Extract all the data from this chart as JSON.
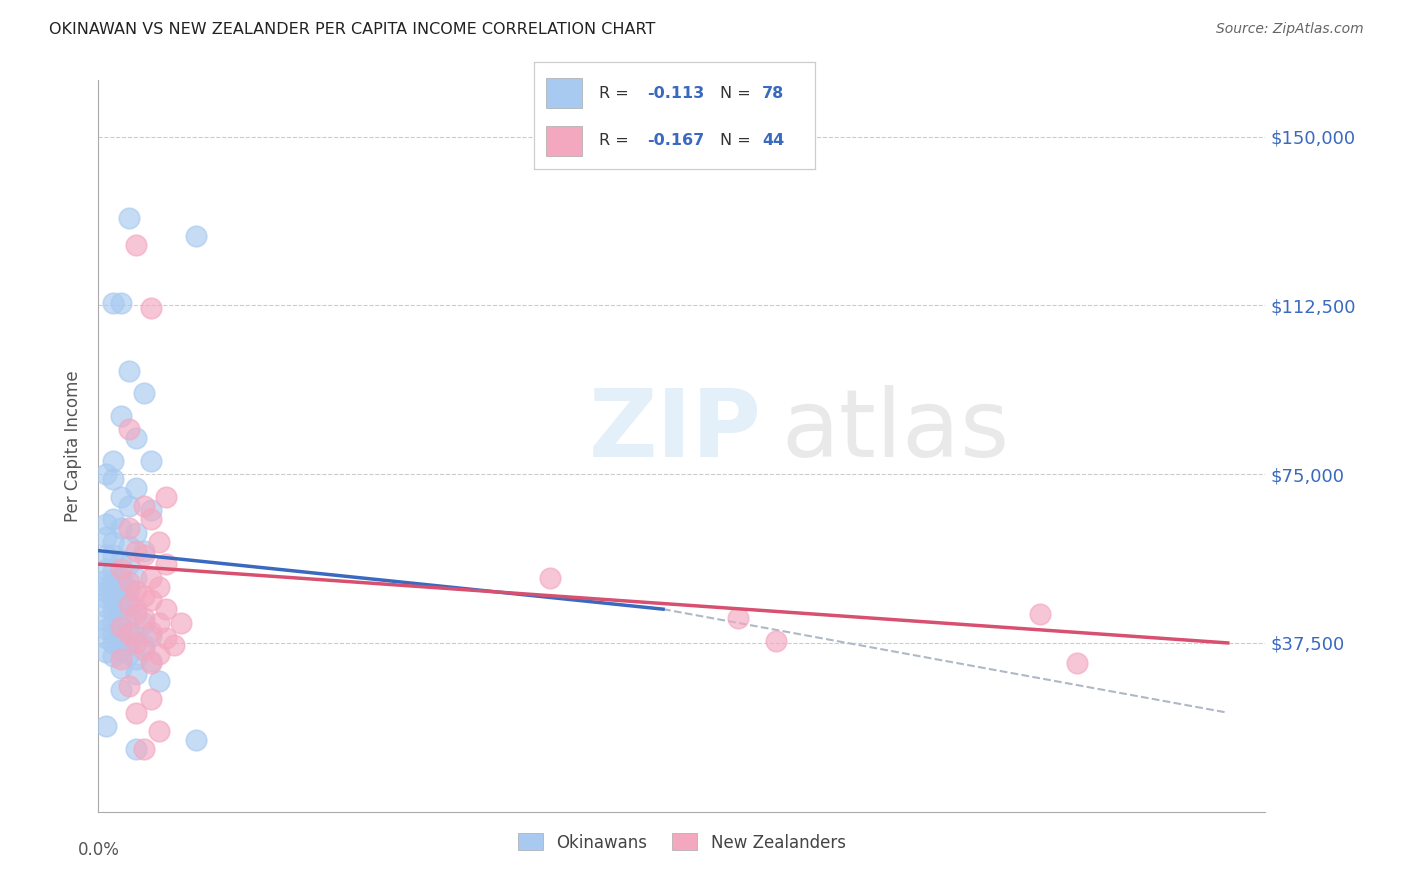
{
  "title": "OKINAWAN VS NEW ZEALANDER PER CAPITA INCOME CORRELATION CHART",
  "source": "Source: ZipAtlas.com",
  "ylabel": "Per Capita Income",
  "watermark_zip": "ZIP",
  "watermark_atlas": "atlas",
  "ytick_labels": [
    "$37,500",
    "$75,000",
    "$112,500",
    "$150,000"
  ],
  "ytick_values": [
    37500,
    75000,
    112500,
    150000
  ],
  "xlim": [
    0.0,
    0.15
  ],
  "ylim": [
    0,
    162500
  ],
  "blue_color": "#a8caf0",
  "pink_color": "#f4a8c0",
  "blue_line_color": "#3a6abf",
  "pink_line_color": "#d85070",
  "dashed_line_color": "#b0b8c8",
  "axis_label_color": "#3a6abf",
  "blue_line": [
    [
      0.0,
      58000
    ],
    [
      0.075,
      45000
    ]
  ],
  "pink_line": [
    [
      0.0,
      55000
    ],
    [
      0.15,
      37500
    ]
  ],
  "dashed_line": [
    [
      0.075,
      45000
    ],
    [
      0.15,
      22000
    ]
  ],
  "blue_scatter": [
    [
      0.004,
      132000
    ],
    [
      0.013,
      128000
    ],
    [
      0.002,
      113000
    ],
    [
      0.003,
      113000
    ],
    [
      0.004,
      98000
    ],
    [
      0.006,
      93000
    ],
    [
      0.003,
      88000
    ],
    [
      0.005,
      83000
    ],
    [
      0.002,
      78000
    ],
    [
      0.007,
      78000
    ],
    [
      0.001,
      75000
    ],
    [
      0.002,
      74000
    ],
    [
      0.005,
      72000
    ],
    [
      0.003,
      70000
    ],
    [
      0.004,
      68000
    ],
    [
      0.007,
      67000
    ],
    [
      0.002,
      65000
    ],
    [
      0.001,
      64000
    ],
    [
      0.003,
      63000
    ],
    [
      0.005,
      62000
    ],
    [
      0.001,
      61000
    ],
    [
      0.002,
      60000
    ],
    [
      0.004,
      59000
    ],
    [
      0.006,
      58000
    ],
    [
      0.001,
      57000
    ],
    [
      0.002,
      57000
    ],
    [
      0.003,
      56000
    ],
    [
      0.004,
      55000
    ],
    [
      0.001,
      54000
    ],
    [
      0.002,
      53500
    ],
    [
      0.003,
      52000
    ],
    [
      0.005,
      52000
    ],
    [
      0.001,
      51500
    ],
    [
      0.002,
      51000
    ],
    [
      0.003,
      50500
    ],
    [
      0.001,
      50000
    ],
    [
      0.002,
      50000
    ],
    [
      0.004,
      49500
    ],
    [
      0.001,
      49000
    ],
    [
      0.003,
      48500
    ],
    [
      0.002,
      48000
    ],
    [
      0.001,
      47500
    ],
    [
      0.004,
      47000
    ],
    [
      0.002,
      46500
    ],
    [
      0.003,
      46000
    ],
    [
      0.001,
      45500
    ],
    [
      0.005,
      45000
    ],
    [
      0.002,
      44500
    ],
    [
      0.004,
      43500
    ],
    [
      0.003,
      43000
    ],
    [
      0.001,
      42500
    ],
    [
      0.002,
      42000
    ],
    [
      0.006,
      42000
    ],
    [
      0.003,
      41000
    ],
    [
      0.001,
      40500
    ],
    [
      0.004,
      40000
    ],
    [
      0.002,
      39500
    ],
    [
      0.005,
      39000
    ],
    [
      0.007,
      39000
    ],
    [
      0.001,
      38500
    ],
    [
      0.003,
      38000
    ],
    [
      0.002,
      37500
    ],
    [
      0.004,
      37000
    ],
    [
      0.006,
      37000
    ],
    [
      0.003,
      36000
    ],
    [
      0.001,
      35500
    ],
    [
      0.004,
      35000
    ],
    [
      0.002,
      34500
    ],
    [
      0.005,
      34000
    ],
    [
      0.007,
      33500
    ],
    [
      0.003,
      32000
    ],
    [
      0.005,
      30500
    ],
    [
      0.008,
      29000
    ],
    [
      0.003,
      27000
    ],
    [
      0.001,
      19000
    ],
    [
      0.013,
      16000
    ],
    [
      0.005,
      14000
    ]
  ],
  "pink_scatter": [
    [
      0.005,
      126000
    ],
    [
      0.007,
      112000
    ],
    [
      0.004,
      85000
    ],
    [
      0.009,
      70000
    ],
    [
      0.006,
      68000
    ],
    [
      0.007,
      65000
    ],
    [
      0.004,
      63000
    ],
    [
      0.008,
      60000
    ],
    [
      0.005,
      58000
    ],
    [
      0.006,
      57000
    ],
    [
      0.009,
      55000
    ],
    [
      0.003,
      54000
    ],
    [
      0.007,
      52000
    ],
    [
      0.004,
      51000
    ],
    [
      0.008,
      50000
    ],
    [
      0.005,
      49000
    ],
    [
      0.006,
      48000
    ],
    [
      0.007,
      47000
    ],
    [
      0.004,
      46000
    ],
    [
      0.009,
      45000
    ],
    [
      0.005,
      44000
    ],
    [
      0.006,
      43000
    ],
    [
      0.008,
      42000
    ],
    [
      0.003,
      41000
    ],
    [
      0.007,
      40000
    ],
    [
      0.004,
      39500
    ],
    [
      0.009,
      38500
    ],
    [
      0.005,
      37500
    ],
    [
      0.01,
      37000
    ],
    [
      0.006,
      36000
    ],
    [
      0.008,
      35000
    ],
    [
      0.003,
      34000
    ],
    [
      0.007,
      33000
    ],
    [
      0.011,
      42000
    ],
    [
      0.06,
      52000
    ],
    [
      0.085,
      43000
    ],
    [
      0.09,
      38000
    ],
    [
      0.125,
      44000
    ],
    [
      0.13,
      33000
    ],
    [
      0.004,
      28000
    ],
    [
      0.007,
      25000
    ],
    [
      0.005,
      22000
    ],
    [
      0.008,
      18000
    ],
    [
      0.006,
      14000
    ]
  ]
}
